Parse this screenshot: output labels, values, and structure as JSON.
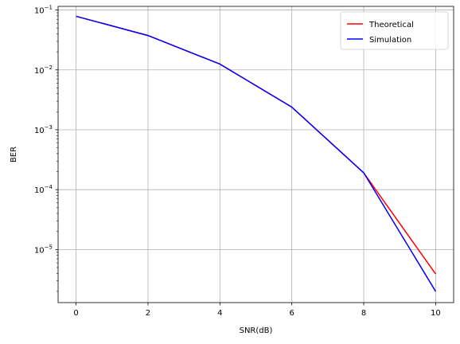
{
  "chart_data": {
    "type": "line",
    "xlabel": "SNR(dB)",
    "ylabel": "BER",
    "x": [
      0,
      2,
      4,
      6,
      8,
      10
    ],
    "xlim": [
      -0.5,
      10.5
    ],
    "ylim": [
      1.3e-06,
      0.115
    ],
    "yscale": "log",
    "grid": true,
    "legend_position": "top-right",
    "x_ticks": [
      0,
      2,
      4,
      6,
      8,
      10
    ],
    "x_tick_labels": [
      "0",
      "2",
      "4",
      "6",
      "8",
      "10"
    ],
    "y_ticks": [
      {
        "value": 0.1,
        "mant": "10",
        "exp": "−1"
      },
      {
        "value": 0.01,
        "mant": "10",
        "exp": "−2"
      },
      {
        "value": 0.001,
        "mant": "10",
        "exp": "−3"
      },
      {
        "value": 0.0001,
        "mant": "10",
        "exp": "−4"
      },
      {
        "value": 1e-05,
        "mant": "10",
        "exp": "−5"
      }
    ],
    "series": [
      {
        "name": "Theoretical",
        "color": "#ff0000",
        "values": [
          0.0786,
          0.0375,
          0.0125,
          0.00239,
          0.000191,
          3.9e-06
        ]
      },
      {
        "name": "Simulation",
        "color": "#0000ff",
        "values": [
          0.0786,
          0.0375,
          0.0125,
          0.00239,
          0.000191,
          2e-06
        ]
      }
    ]
  }
}
